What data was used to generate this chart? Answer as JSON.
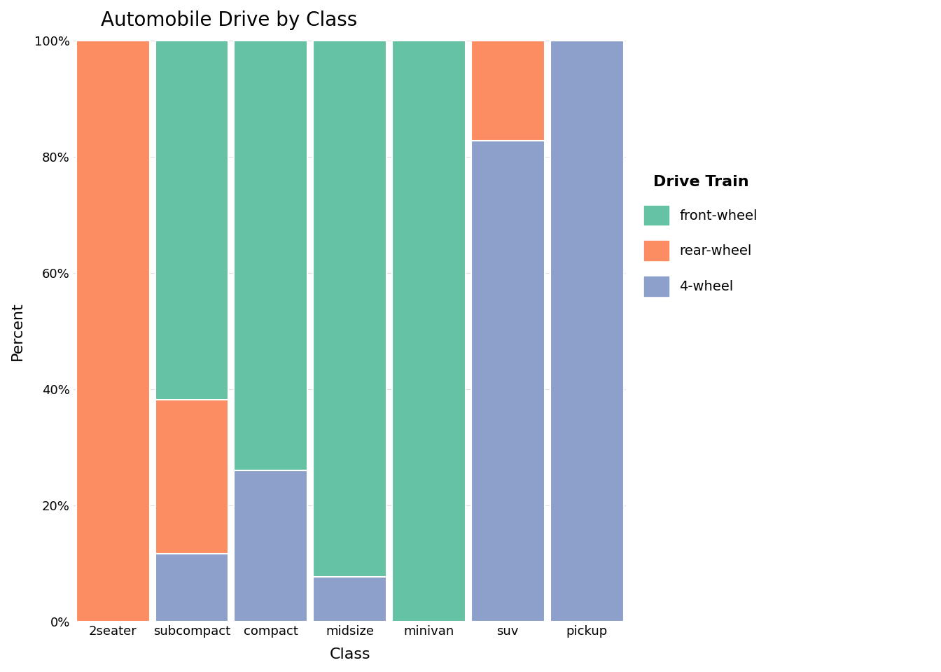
{
  "categories": [
    "2seater",
    "subcompact",
    "compact",
    "midsize",
    "minivan",
    "suv",
    "pickup"
  ],
  "segments": {
    "4-wheel": [
      0.0,
      0.1176,
      0.2609,
      0.0769,
      0.0,
      0.8276,
      1.0
    ],
    "rear-wheel": [
      1.0,
      0.2647,
      0.0,
      0.0,
      0.0,
      0.1724,
      0.0
    ],
    "front-wheel": [
      0.0,
      0.6176,
      0.7391,
      0.9231,
      1.0,
      0.0,
      0.0
    ]
  },
  "colors": {
    "front-wheel": "#66C2A5",
    "rear-wheel": "#FC8D62",
    "4-wheel": "#8DA0CB"
  },
  "stack_order": [
    "4-wheel",
    "rear-wheel",
    "front-wheel"
  ],
  "title": "Automobile Drive by Class",
  "xlabel": "Class",
  "ylabel": "Percent",
  "yticks": [
    0,
    0.2,
    0.4,
    0.6,
    0.8,
    1.0
  ],
  "ytick_labels": [
    "0%",
    "20%",
    "40%",
    "60%",
    "80%",
    "100%"
  ],
  "legend_title": "Drive Train",
  "legend_order": [
    "front-wheel",
    "rear-wheel",
    "4-wheel"
  ],
  "bar_width": 0.93,
  "background_color": "#FFFFFF",
  "plot_background_color": "#FFFFFF",
  "grid_color": "#DDDDDD",
  "title_fontsize": 20,
  "axis_label_fontsize": 16,
  "tick_fontsize": 13,
  "legend_fontsize": 14,
  "legend_title_fontsize": 16
}
